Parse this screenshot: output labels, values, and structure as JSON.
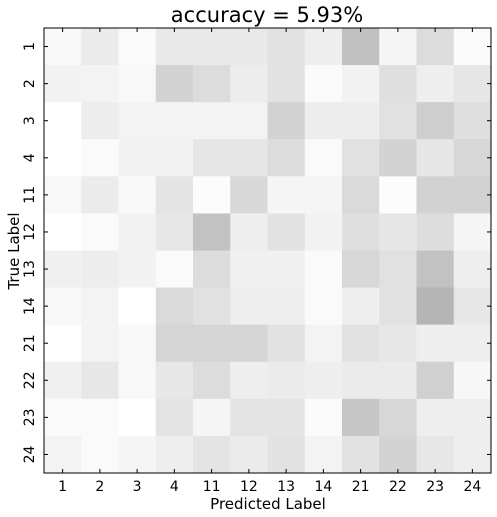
{
  "chart_data": {
    "type": "heatmap",
    "title": "accuracy = 5.93%",
    "xlabel": "Predicted Label",
    "ylabel": "True Label",
    "x_categories": [
      "1",
      "2",
      "3",
      "4",
      "11",
      "12",
      "13",
      "14",
      "21",
      "22",
      "23",
      "24"
    ],
    "y_categories": [
      "1",
      "2",
      "3",
      "4",
      "11",
      "12",
      "13",
      "14",
      "21",
      "22",
      "23",
      "24"
    ],
    "colormap": "grayscale",
    "color_low": "#ffffff",
    "color_high": "#b5b5b5",
    "grid": false,
    "values": [
      [
        0.04,
        0.12,
        0.03,
        0.13,
        0.13,
        0.13,
        0.17,
        0.1,
        0.37,
        0.06,
        0.21,
        0.03
      ],
      [
        0.08,
        0.07,
        0.04,
        0.26,
        0.21,
        0.11,
        0.17,
        0.03,
        0.08,
        0.19,
        0.1,
        0.15
      ],
      [
        0.0,
        0.11,
        0.07,
        0.07,
        0.07,
        0.07,
        0.27,
        0.11,
        0.11,
        0.18,
        0.29,
        0.19
      ],
      [
        0.0,
        0.03,
        0.08,
        0.08,
        0.15,
        0.15,
        0.21,
        0.03,
        0.18,
        0.26,
        0.15,
        0.24
      ],
      [
        0.04,
        0.12,
        0.04,
        0.16,
        0.02,
        0.23,
        0.06,
        0.06,
        0.22,
        0.02,
        0.27,
        0.27
      ],
      [
        0.0,
        0.03,
        0.08,
        0.14,
        0.36,
        0.1,
        0.17,
        0.08,
        0.19,
        0.15,
        0.2,
        0.06
      ],
      [
        0.09,
        0.11,
        0.08,
        0.03,
        0.21,
        0.09,
        0.09,
        0.03,
        0.24,
        0.18,
        0.36,
        0.1
      ],
      [
        0.04,
        0.07,
        0.0,
        0.22,
        0.18,
        0.1,
        0.1,
        0.03,
        0.1,
        0.17,
        0.44,
        0.14
      ],
      [
        0.0,
        0.07,
        0.04,
        0.25,
        0.25,
        0.25,
        0.18,
        0.07,
        0.18,
        0.14,
        0.1,
        0.1
      ],
      [
        0.09,
        0.14,
        0.04,
        0.14,
        0.21,
        0.1,
        0.12,
        0.1,
        0.12,
        0.12,
        0.28,
        0.05
      ],
      [
        0.03,
        0.03,
        0.0,
        0.16,
        0.06,
        0.16,
        0.16,
        0.03,
        0.34,
        0.24,
        0.1,
        0.1
      ],
      [
        0.07,
        0.03,
        0.06,
        0.1,
        0.16,
        0.12,
        0.17,
        0.07,
        0.17,
        0.26,
        0.14,
        0.1
      ]
    ]
  }
}
